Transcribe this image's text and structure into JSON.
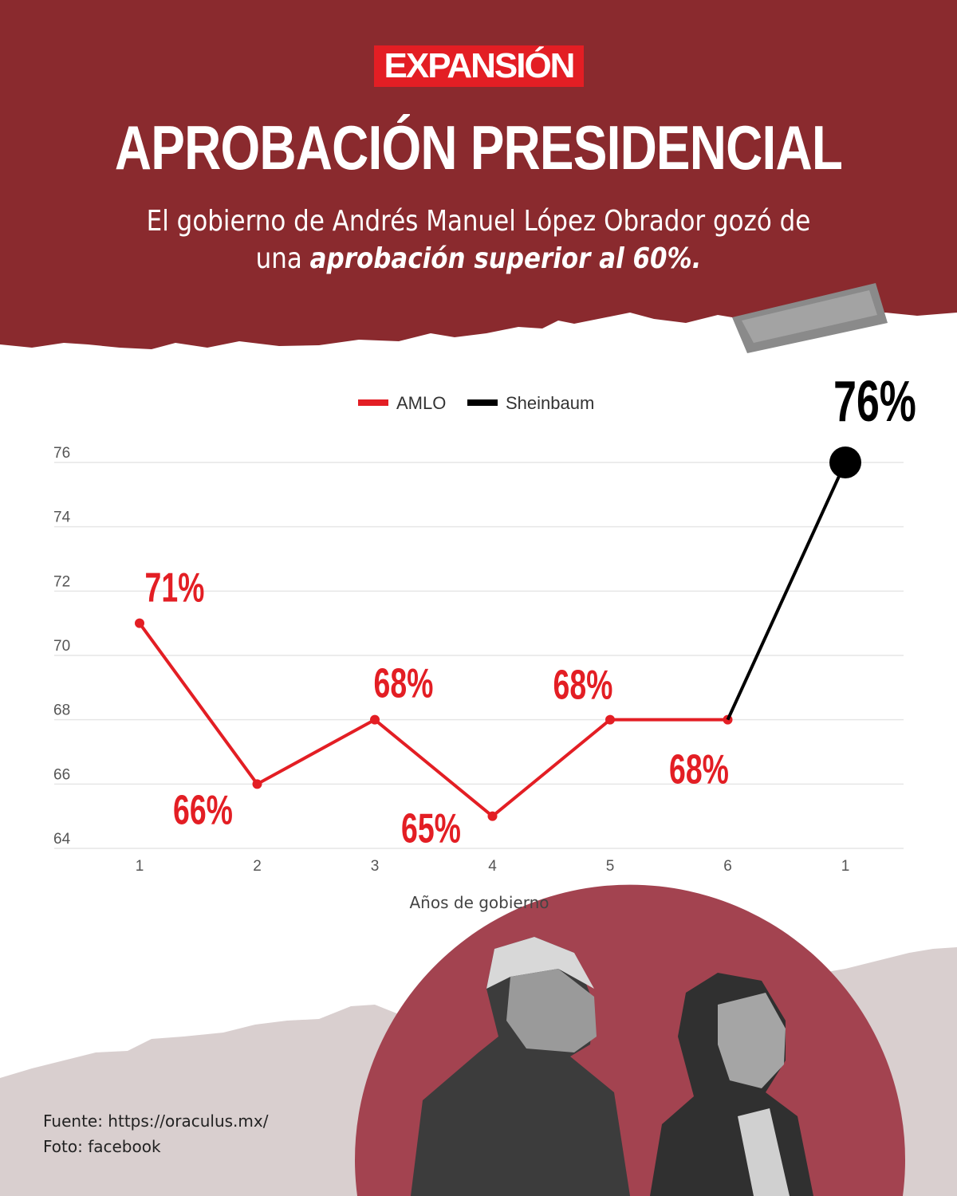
{
  "brand": {
    "logo": "EXPANSIÓN"
  },
  "header": {
    "title": "APROBACIÓN PRESIDENCIAL",
    "subtitle_plain": "El gobierno de Andrés Manuel López Obrador gozó de una ",
    "subtitle_bold": "aprobación superior al 60%."
  },
  "colors": {
    "header_bg": "#8a2a2e",
    "logo_bg": "#e31e24",
    "amlo": "#e31e24",
    "sheinbaum": "#000000",
    "circle": "#a34350",
    "footer_band": "#d9cfcf"
  },
  "chart_data": {
    "type": "line",
    "title": "",
    "xlabel": "Años de gobierno",
    "ylabel": "",
    "categories": [
      "1",
      "2",
      "3",
      "4",
      "5",
      "6",
      "1"
    ],
    "yticks": [
      "64",
      "66",
      "68",
      "70",
      "72",
      "74",
      "76"
    ],
    "ylim": [
      64,
      76
    ],
    "grid": true,
    "legend_position": "top-center",
    "series": [
      {
        "name": "AMLO",
        "color": "#e31e24",
        "values": [
          71,
          66,
          68,
          65,
          68,
          68,
          null
        ],
        "labels": [
          "71%",
          "66%",
          "68%",
          "65%",
          "68%",
          "68%",
          ""
        ]
      },
      {
        "name": "Sheinbaum",
        "color": "#000000",
        "values": [
          null,
          null,
          null,
          null,
          null,
          68,
          76
        ],
        "labels": [
          "",
          "",
          "",
          "",
          "",
          "",
          "76%"
        ]
      }
    ]
  },
  "footer": {
    "source": "Fuente: https://oraculus.mx/",
    "photo": "Foto: facebook"
  }
}
